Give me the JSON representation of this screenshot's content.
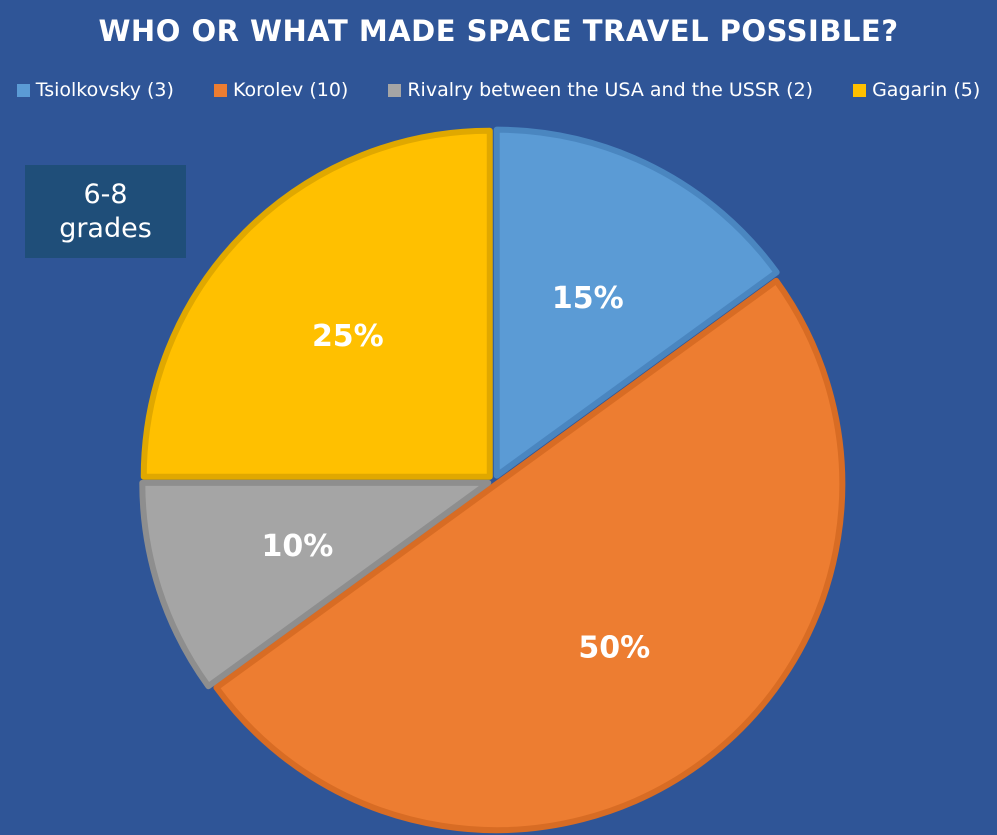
{
  "chart_data": {
    "type": "pie",
    "title": "WHO OR WHAT MADE SPACE TRAVEL POSSIBLE?",
    "annotation": "6-8 grades",
    "legend_position": "top",
    "slices": [
      {
        "legend": "Tsiolkovsky (3)",
        "value": 3,
        "percent_label": "15%",
        "color": "#5B9BD5",
        "stroke": "#4A86C0"
      },
      {
        "legend": "Korolev (10)",
        "value": 10,
        "percent_label": "50%",
        "color": "#ED7D31",
        "stroke": "#D86C24"
      },
      {
        "legend": "Rivalry between the USA and the USSR (2)",
        "value": 2,
        "percent_label": "10%",
        "color": "#A5A5A5",
        "stroke": "#8E8E8E"
      },
      {
        "legend": "Gagarin (5)",
        "value": 5,
        "percent_label": "25%",
        "color": "#FFC000",
        "stroke": "#E0A800"
      }
    ]
  },
  "background_color": "#2F5597"
}
